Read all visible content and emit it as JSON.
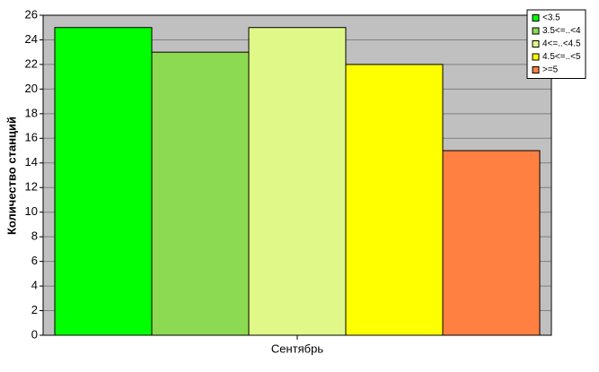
{
  "chart_data": {
    "type": "bar",
    "categories": [
      "Сентябрь"
    ],
    "y_label": "Количество станций",
    "series": [
      {
        "name": "<3.5",
        "color": "#00ff00",
        "values": [
          25
        ]
      },
      {
        "name": "3.5<=..<4",
        "color": "#8cd952",
        "values": [
          23
        ]
      },
      {
        "name": "4<=..<4.5",
        "color": "#e0f888",
        "values": [
          25
        ]
      },
      {
        "name": "4.5<=..<5",
        "color": "#ffff00",
        "values": [
          22
        ]
      },
      {
        "name": ">=5",
        "color": "#ff8040",
        "values": [
          15
        ]
      }
    ],
    "ylim": [
      0,
      26
    ],
    "yticks": [
      0,
      2,
      4,
      6,
      8,
      10,
      12,
      14,
      16,
      18,
      20,
      22,
      24,
      26
    ],
    "grid": true,
    "legend": "upper right"
  }
}
